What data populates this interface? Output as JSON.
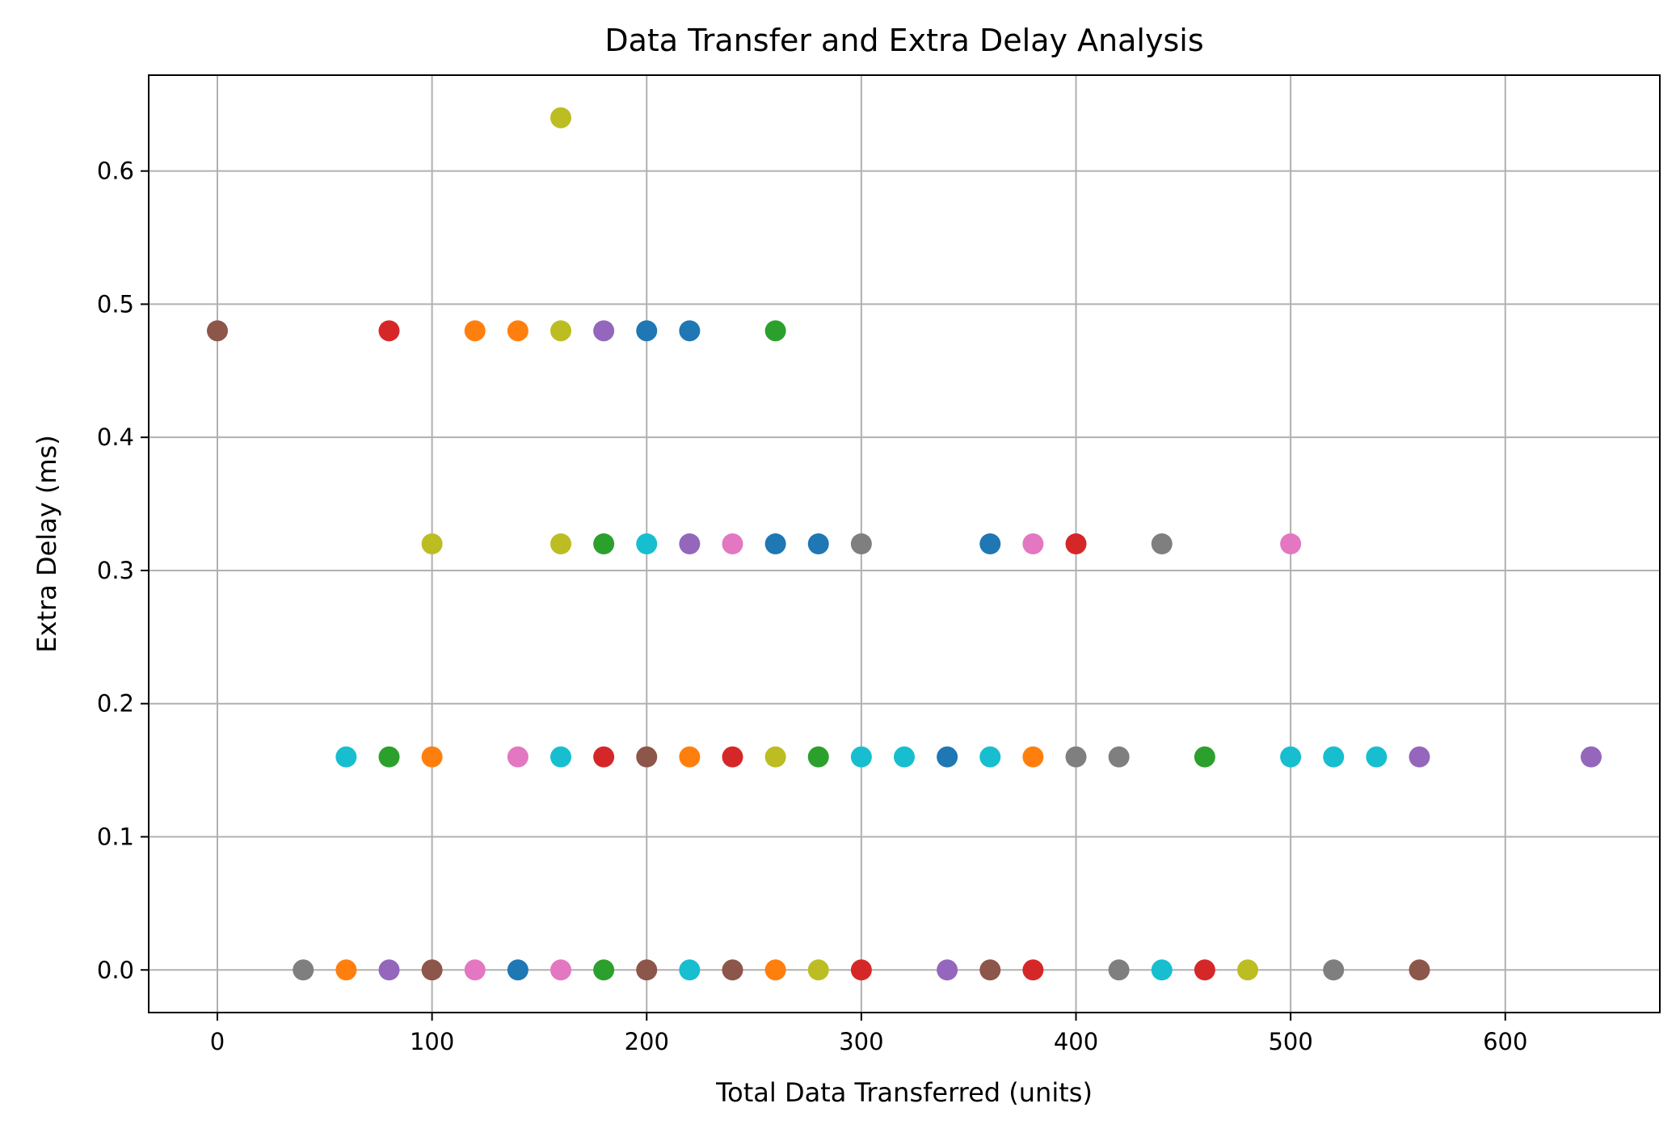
{
  "chart_data": {
    "type": "scatter",
    "title": "Data Transfer and Extra Delay Analysis",
    "xlabel": "Total Data Transferred (units)",
    "ylabel": "Extra Delay (ms)",
    "xlim": [
      -32,
      672
    ],
    "ylim": [
      -0.032,
      0.672
    ],
    "xticks": [
      0,
      100,
      200,
      300,
      400,
      500,
      600
    ],
    "yticks": [
      0.0,
      0.1,
      0.2,
      0.3,
      0.4,
      0.5,
      0.6
    ],
    "xtick_labels": [
      "0",
      "100",
      "200",
      "300",
      "400",
      "500",
      "600"
    ],
    "ytick_labels": [
      "0.0",
      "0.1",
      "0.2",
      "0.3",
      "0.4",
      "0.5",
      "0.6"
    ],
    "grid": true,
    "legend": "none",
    "palette": [
      "#1f77b4",
      "#ff7f0e",
      "#2ca02c",
      "#d62728",
      "#9467bd",
      "#8c564b",
      "#e377c2",
      "#7f7f7f",
      "#bcbd22",
      "#17becf"
    ],
    "points": [
      {
        "x": 160,
        "y": 0.64,
        "color": "#bcbd22"
      },
      {
        "x": 0,
        "y": 0.48,
        "color": "#8c564b"
      },
      {
        "x": 80,
        "y": 0.48,
        "color": "#d62728"
      },
      {
        "x": 120,
        "y": 0.48,
        "color": "#ff7f0e"
      },
      {
        "x": 140,
        "y": 0.48,
        "color": "#ff7f0e"
      },
      {
        "x": 160,
        "y": 0.48,
        "color": "#bcbd22"
      },
      {
        "x": 180,
        "y": 0.48,
        "color": "#9467bd"
      },
      {
        "x": 200,
        "y": 0.48,
        "color": "#1f77b4"
      },
      {
        "x": 220,
        "y": 0.48,
        "color": "#1f77b4"
      },
      {
        "x": 260,
        "y": 0.48,
        "color": "#2ca02c"
      },
      {
        "x": 100,
        "y": 0.32,
        "color": "#bcbd22"
      },
      {
        "x": 160,
        "y": 0.32,
        "color": "#bcbd22"
      },
      {
        "x": 180,
        "y": 0.32,
        "color": "#2ca02c"
      },
      {
        "x": 200,
        "y": 0.32,
        "color": "#17becf"
      },
      {
        "x": 220,
        "y": 0.32,
        "color": "#9467bd"
      },
      {
        "x": 240,
        "y": 0.32,
        "color": "#e377c2"
      },
      {
        "x": 260,
        "y": 0.32,
        "color": "#1f77b4"
      },
      {
        "x": 280,
        "y": 0.32,
        "color": "#1f77b4"
      },
      {
        "x": 300,
        "y": 0.32,
        "color": "#7f7f7f"
      },
      {
        "x": 360,
        "y": 0.32,
        "color": "#1f77b4"
      },
      {
        "x": 380,
        "y": 0.32,
        "color": "#e377c2"
      },
      {
        "x": 400,
        "y": 0.32,
        "color": "#d62728"
      },
      {
        "x": 440,
        "y": 0.32,
        "color": "#7f7f7f"
      },
      {
        "x": 500,
        "y": 0.32,
        "color": "#e377c2"
      },
      {
        "x": 60,
        "y": 0.16,
        "color": "#17becf"
      },
      {
        "x": 80,
        "y": 0.16,
        "color": "#2ca02c"
      },
      {
        "x": 100,
        "y": 0.16,
        "color": "#ff7f0e"
      },
      {
        "x": 140,
        "y": 0.16,
        "color": "#e377c2"
      },
      {
        "x": 160,
        "y": 0.16,
        "color": "#17becf"
      },
      {
        "x": 180,
        "y": 0.16,
        "color": "#d62728"
      },
      {
        "x": 200,
        "y": 0.16,
        "color": "#8c564b"
      },
      {
        "x": 220,
        "y": 0.16,
        "color": "#ff7f0e"
      },
      {
        "x": 240,
        "y": 0.16,
        "color": "#d62728"
      },
      {
        "x": 260,
        "y": 0.16,
        "color": "#bcbd22"
      },
      {
        "x": 280,
        "y": 0.16,
        "color": "#2ca02c"
      },
      {
        "x": 300,
        "y": 0.16,
        "color": "#17becf"
      },
      {
        "x": 320,
        "y": 0.16,
        "color": "#17becf"
      },
      {
        "x": 340,
        "y": 0.16,
        "color": "#1f77b4"
      },
      {
        "x": 360,
        "y": 0.16,
        "color": "#17becf"
      },
      {
        "x": 380,
        "y": 0.16,
        "color": "#ff7f0e"
      },
      {
        "x": 400,
        "y": 0.16,
        "color": "#7f7f7f"
      },
      {
        "x": 420,
        "y": 0.16,
        "color": "#7f7f7f"
      },
      {
        "x": 460,
        "y": 0.16,
        "color": "#2ca02c"
      },
      {
        "x": 500,
        "y": 0.16,
        "color": "#17becf"
      },
      {
        "x": 520,
        "y": 0.16,
        "color": "#17becf"
      },
      {
        "x": 540,
        "y": 0.16,
        "color": "#17becf"
      },
      {
        "x": 560,
        "y": 0.16,
        "color": "#9467bd"
      },
      {
        "x": 640,
        "y": 0.16,
        "color": "#9467bd"
      },
      {
        "x": 40,
        "y": 0.0,
        "color": "#7f7f7f"
      },
      {
        "x": 60,
        "y": 0.0,
        "color": "#ff7f0e"
      },
      {
        "x": 80,
        "y": 0.0,
        "color": "#9467bd"
      },
      {
        "x": 100,
        "y": 0.0,
        "color": "#8c564b"
      },
      {
        "x": 120,
        "y": 0.0,
        "color": "#e377c2"
      },
      {
        "x": 140,
        "y": 0.0,
        "color": "#1f77b4"
      },
      {
        "x": 160,
        "y": 0.0,
        "color": "#e377c2"
      },
      {
        "x": 180,
        "y": 0.0,
        "color": "#2ca02c"
      },
      {
        "x": 200,
        "y": 0.0,
        "color": "#8c564b"
      },
      {
        "x": 220,
        "y": 0.0,
        "color": "#17becf"
      },
      {
        "x": 240,
        "y": 0.0,
        "color": "#8c564b"
      },
      {
        "x": 260,
        "y": 0.0,
        "color": "#ff7f0e"
      },
      {
        "x": 280,
        "y": 0.0,
        "color": "#bcbd22"
      },
      {
        "x": 300,
        "y": 0.0,
        "color": "#d62728"
      },
      {
        "x": 340,
        "y": 0.0,
        "color": "#9467bd"
      },
      {
        "x": 360,
        "y": 0.0,
        "color": "#8c564b"
      },
      {
        "x": 380,
        "y": 0.0,
        "color": "#d62728"
      },
      {
        "x": 420,
        "y": 0.0,
        "color": "#7f7f7f"
      },
      {
        "x": 440,
        "y": 0.0,
        "color": "#17becf"
      },
      {
        "x": 460,
        "y": 0.0,
        "color": "#d62728"
      },
      {
        "x": 480,
        "y": 0.0,
        "color": "#bcbd22"
      },
      {
        "x": 520,
        "y": 0.0,
        "color": "#7f7f7f"
      },
      {
        "x": 560,
        "y": 0.0,
        "color": "#8c564b"
      }
    ]
  }
}
